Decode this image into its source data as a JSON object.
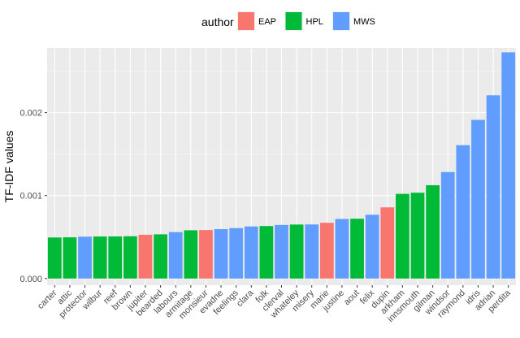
{
  "chart_data": {
    "type": "bar",
    "ylabel": "TF-IDF values",
    "xlabel": "",
    "ylim": [
      -8e-05,
      0.00278
    ],
    "yticks": [
      0.0,
      0.001,
      0.002
    ],
    "ytick_labels": [
      "0.000",
      "0.001",
      "0.002"
    ],
    "grid": true,
    "legend": {
      "title": "author",
      "placement": "top",
      "entries": [
        {
          "label": "EAP",
          "color": "#F8766D"
        },
        {
          "label": "HPL",
          "color": "#00BA38"
        },
        {
          "label": "MWS",
          "color": "#619CFF"
        }
      ]
    },
    "categories": [
      "carter",
      "attic",
      "protector",
      "wilbur",
      "reef",
      "brown",
      "jupiter",
      "bearded",
      "labours",
      "armitage",
      "monsieur",
      "evadne",
      "feelings",
      "clara",
      "folk",
      "clerval",
      "whateley",
      "misery",
      "marie",
      "justine",
      "aout",
      "felix",
      "dupin",
      "arkham",
      "innsmouth",
      "gilman",
      "windsor",
      "raymond",
      "idris",
      "adrian",
      "perdita"
    ],
    "values": [
      0.000495,
      0.000497,
      0.000505,
      0.000507,
      0.000508,
      0.00051,
      0.000528,
      0.000533,
      0.00056,
      0.000582,
      0.000585,
      0.000596,
      0.000608,
      0.000628,
      0.000633,
      0.000646,
      0.000651,
      0.000652,
      0.000672,
      0.000718,
      0.000721,
      0.000769,
      0.000858,
      0.001021,
      0.001035,
      0.001125,
      0.001284,
      0.001608,
      0.001913,
      0.002209,
      0.002727
    ],
    "authors": [
      "HPL",
      "HPL",
      "MWS",
      "HPL",
      "HPL",
      "HPL",
      "EAP",
      "HPL",
      "MWS",
      "HPL",
      "EAP",
      "MWS",
      "MWS",
      "MWS",
      "HPL",
      "MWS",
      "HPL",
      "MWS",
      "EAP",
      "MWS",
      "HPL",
      "MWS",
      "EAP",
      "HPL",
      "HPL",
      "HPL",
      "MWS",
      "MWS",
      "MWS",
      "MWS",
      "MWS"
    ]
  }
}
